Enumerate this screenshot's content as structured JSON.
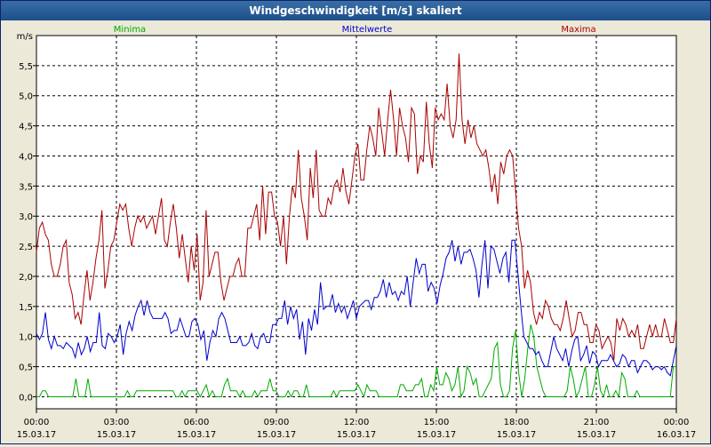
{
  "window": {
    "title": "Windgeschwindigkeit [m/s] skaliert"
  },
  "chart_data": {
    "type": "line",
    "title": "Windgeschwindigkeit [m/s] skaliert",
    "ylabel": "m/s",
    "xlabel": "",
    "ylim": [
      -0.2,
      6.0
    ],
    "grid": true,
    "legend_placement": "top",
    "x_ticks": [
      {
        "time": "00:00",
        "date": "15.03.17"
      },
      {
        "time": "03:00",
        "date": "15.03.17"
      },
      {
        "time": "06:00",
        "date": "15.03.17"
      },
      {
        "time": "09:00",
        "date": "15.03.17"
      },
      {
        "time": "12:00",
        "date": "15.03.17"
      },
      {
        "time": "15:00",
        "date": "15.03.17"
      },
      {
        "time": "18:00",
        "date": "15.03.17"
      },
      {
        "time": "21:00",
        "date": "15.03.17"
      },
      {
        "time": "00:00",
        "date": "16.03.17"
      }
    ],
    "y_ticks": [
      "0,0",
      "0,5",
      "1,0",
      "1,5",
      "2,0",
      "2,5",
      "3,0",
      "3,5",
      "4,0",
      "4,5",
      "5,0",
      "5,5"
    ],
    "y_tick_values": [
      0,
      0.5,
      1,
      1.5,
      2,
      2.5,
      3,
      3.5,
      4,
      4.5,
      5,
      5.5
    ],
    "x_range_hours": [
      0,
      24
    ],
    "series": [
      {
        "name": "Minima",
        "color": "#00aa00",
        "values": [
          0.0,
          0.0,
          0.1,
          0.1,
          0.0,
          0.0,
          0.0,
          0.0,
          0.0,
          0.0,
          0.0,
          0.0,
          0.0,
          0.3,
          0.0,
          0.0,
          0.0,
          0.3,
          0.0,
          0.0,
          0.0,
          0.0,
          0.0,
          0.0,
          0.0,
          0.0,
          0.0,
          0.0,
          0.0,
          0.0,
          0.1,
          0.0,
          0.0,
          0.1,
          0.1,
          0.1,
          0.1,
          0.1,
          0.1,
          0.1,
          0.1,
          0.1,
          0.1,
          0.1,
          0.1,
          0.1,
          0.0,
          0.0,
          0.1,
          0.0,
          0.1,
          0.1,
          0.1,
          0.1,
          0.0,
          0.1,
          0.2,
          0.0,
          0.1,
          0.0,
          0.0,
          0.0,
          0.2,
          0.3,
          0.1,
          0.1,
          0.1,
          0.0,
          0.1,
          0.0,
          0.0,
          0.0,
          0.1,
          0.0,
          0.1,
          0.1,
          0.1,
          0.3,
          0.1,
          0.1,
          0.0,
          0.0,
          0.0,
          0.1,
          0.0,
          0.1,
          0.1,
          0.0,
          0.0,
          0.2,
          0.0,
          0.0,
          0.0,
          0.0,
          0.0,
          0.0,
          0.0,
          0.0,
          0.1,
          0.0,
          0.1,
          0.1,
          0.1,
          0.1,
          0.1,
          0.1,
          0.2,
          0.1,
          0.0,
          0.2,
          0.1,
          0.1,
          0.1,
          0.0,
          0.0,
          0.0,
          0.0,
          0.0,
          0.0,
          0.0,
          0.2,
          0.2,
          0.1,
          0.1,
          0.1,
          0.2,
          0.2,
          0.3,
          0.0,
          0.0,
          0.2,
          0.1,
          0.5,
          0.2,
          0.2,
          0.4,
          0.3,
          0.1,
          0.2,
          0.5,
          0.0,
          0.1,
          0.5,
          0.4,
          0.2,
          0.3,
          0.0,
          0.0,
          0.1,
          0.2,
          0.3,
          0.8,
          0.9,
          0.2,
          0.0,
          0.0,
          0.1,
          0.8,
          1.1,
          0.4,
          0.0,
          0.3,
          0.8,
          1.2,
          1.0,
          0.5,
          0.3,
          0.1,
          0.0,
          0.0,
          0.0,
          0.0,
          0.0,
          0.0,
          0.0,
          0.1,
          0.5,
          0.3,
          0.0,
          0.1,
          0.3,
          0.5,
          0.0,
          0.0,
          0.2,
          0.5,
          0.1,
          0.0,
          0.2,
          0.0,
          0.0,
          0.1,
          0.0,
          0.4,
          0.3,
          0.0,
          0.0,
          0.0,
          0.1,
          0.0,
          0.0,
          0.0,
          0.0,
          0.0,
          0.0,
          0.0,
          0.0,
          0.0,
          0.0,
          0.0,
          0.5,
          0.5
        ]
      },
      {
        "name": "Mittelwerte",
        "color": "#0000cc",
        "values": [
          1.05,
          0.95,
          1.05,
          1.4,
          0.95,
          0.8,
          1.0,
          0.85,
          0.85,
          0.8,
          0.9,
          0.85,
          0.8,
          0.65,
          0.9,
          0.7,
          0.8,
          1.0,
          0.75,
          0.9,
          0.9,
          1.4,
          0.85,
          0.8,
          1.05,
          1.0,
          0.9,
          1.0,
          1.2,
          0.7,
          1.05,
          1.25,
          1.1,
          1.35,
          1.5,
          1.6,
          1.35,
          1.6,
          1.4,
          1.3,
          1.3,
          1.3,
          1.3,
          1.4,
          1.3,
          1.05,
          1.1,
          1.1,
          1.3,
          1.15,
          1.0,
          1.0,
          1.25,
          1.3,
          1.2,
          0.95,
          1.1,
          0.6,
          0.9,
          1.1,
          1.0,
          1.3,
          1.4,
          1.3,
          1.1,
          0.9,
          0.9,
          0.9,
          1.0,
          0.85,
          0.85,
          0.9,
          1.05,
          0.85,
          0.8,
          1.0,
          1.05,
          0.9,
          0.9,
          1.2,
          1.2,
          1.3,
          1.3,
          1.6,
          1.2,
          1.5,
          1.3,
          1.45,
          0.95,
          1.25,
          0.7,
          1.3,
          1.1,
          1.45,
          1.2,
          1.9,
          1.45,
          1.5,
          1.5,
          1.7,
          1.4,
          1.55,
          1.4,
          1.5,
          1.3,
          1.45,
          1.6,
          1.3,
          1.5,
          1.55,
          1.6,
          1.6,
          1.45,
          1.65,
          1.65,
          1.75,
          1.95,
          1.65,
          1.9,
          1.7,
          1.75,
          1.6,
          1.75,
          1.7,
          2.0,
          1.5,
          1.9,
          2.3,
          2.05,
          2.2,
          2.2,
          1.75,
          1.9,
          1.8,
          1.55,
          1.85,
          2.05,
          2.3,
          2.4,
          2.6,
          2.25,
          2.5,
          2.2,
          2.4,
          2.4,
          2.45,
          2.3,
          2.1,
          1.65,
          2.2,
          2.6,
          1.8,
          2.5,
          2.45,
          2.25,
          2.05,
          2.3,
          2.4,
          1.9,
          2.6,
          2.6,
          2.05,
          1.5,
          1.0,
          0.9,
          0.8,
          0.8,
          0.7,
          0.75,
          0.6,
          0.5,
          0.5,
          0.75,
          1.0,
          0.8,
          0.7,
          0.6,
          0.8,
          0.5,
          0.75,
          0.95,
          1.0,
          0.6,
          0.7,
          0.85,
          0.55,
          0.75,
          0.7,
          0.5,
          0.6,
          0.6,
          0.6,
          0.7,
          0.6,
          0.5,
          0.55,
          0.7,
          0.65,
          0.5,
          0.6,
          0.6,
          0.4,
          0.5,
          0.6,
          0.6,
          0.55,
          0.45,
          0.5,
          0.5,
          0.45,
          0.5,
          0.4,
          0.35,
          0.6,
          0.85
        ]
      },
      {
        "name": "Maxima",
        "color": "#aa0000",
        "values": [
          2.4,
          2.8,
          2.9,
          2.7,
          2.6,
          2.2,
          2.0,
          2.0,
          2.2,
          2.5,
          2.6,
          1.9,
          1.7,
          1.3,
          1.4,
          1.2,
          1.7,
          2.1,
          1.6,
          1.9,
          2.3,
          2.6,
          3.1,
          1.8,
          2.1,
          2.5,
          2.6,
          2.9,
          3.2,
          3.1,
          3.2,
          2.8,
          2.5,
          2.8,
          3.0,
          2.9,
          3.0,
          2.8,
          2.9,
          3.0,
          2.7,
          3.0,
          3.3,
          2.6,
          2.5,
          2.9,
          3.2,
          2.8,
          2.3,
          2.7,
          2.3,
          1.9,
          2.5,
          2.1,
          2.7,
          1.6,
          1.9,
          3.1,
          2.0,
          2.2,
          2.4,
          2.4,
          1.9,
          1.6,
          1.8,
          2.0,
          2.0,
          2.2,
          2.3,
          2.0,
          2.0,
          2.8,
          2.8,
          3.0,
          3.2,
          2.6,
          3.5,
          2.7,
          3.4,
          3.4,
          3.0,
          2.9,
          2.5,
          3.0,
          2.2,
          3.0,
          3.5,
          3.3,
          4.1,
          3.3,
          3.0,
          2.6,
          3.8,
          3.3,
          4.1,
          3.1,
          3.0,
          3.0,
          3.3,
          3.2,
          3.5,
          3.6,
          3.4,
          3.8,
          3.4,
          3.2,
          3.6,
          4.0,
          4.2,
          3.6,
          3.6,
          4.1,
          4.5,
          4.3,
          4.0,
          4.8,
          4.4,
          4.0,
          4.6,
          5.1,
          4.6,
          4.0,
          4.8,
          4.5,
          4.3,
          3.9,
          4.8,
          4.7,
          3.7,
          4.0,
          3.9,
          4.9,
          4.2,
          3.8,
          4.8,
          4.6,
          4.7,
          4.6,
          5.2,
          4.5,
          4.3,
          4.6,
          5.7,
          4.6,
          4.2,
          4.6,
          4.3,
          4.5,
          4.2,
          4.1,
          4.0,
          4.1,
          3.8,
          3.4,
          3.7,
          3.2,
          3.9,
          3.7,
          4.0,
          4.1,
          4.0,
          3.4,
          2.8,
          2.5,
          1.8,
          2.1,
          1.9,
          1.4,
          1.2,
          1.4,
          1.3,
          1.6,
          1.5,
          1.3,
          1.2,
          1.2,
          1.1,
          1.3,
          1.6,
          1.3,
          1.0,
          1.1,
          1.4,
          1.4,
          1.2,
          1.2,
          0.9,
          0.9,
          1.2,
          1.1,
          0.8,
          0.9,
          1.0,
          0.9,
          0.6,
          1.3,
          1.1,
          1.3,
          1.2,
          1.0,
          1.1,
          1.0,
          1.2,
          0.8,
          0.8,
          1.0,
          1.2,
          1.0,
          1.2,
          1.0,
          1.0,
          1.3,
          1.1,
          0.9,
          0.9,
          1.3
        ]
      }
    ]
  }
}
